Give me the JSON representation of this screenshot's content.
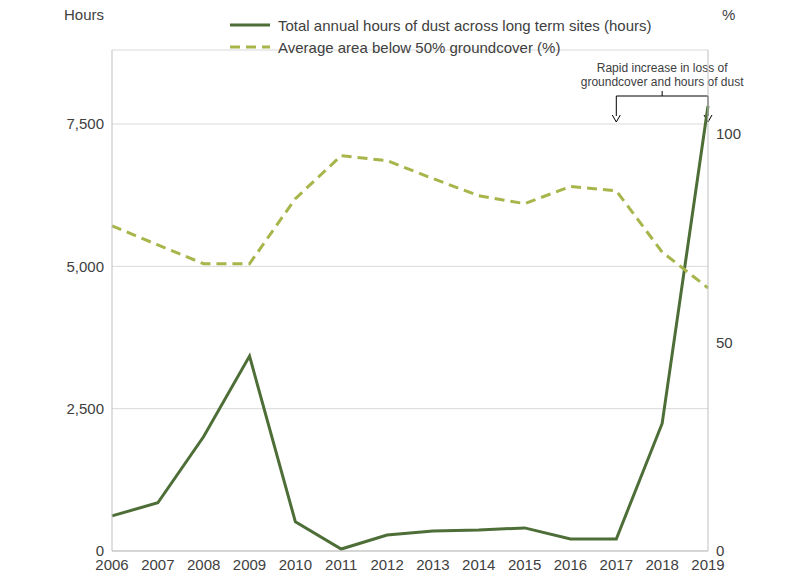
{
  "chart_data": {
    "type": "line",
    "y_label": "Hours",
    "y2_label": "%",
    "categories": [
      "2006",
      "2007",
      "2008",
      "2009",
      "2010",
      "2011",
      "2012",
      "2013",
      "2014",
      "2015",
      "2016",
      "2017",
      "2018",
      "2019"
    ],
    "series": [
      {
        "name": "Total annual hours of dust across long term sites (hours)",
        "color": "#4e6e38",
        "line_style": "solid",
        "values": [
          617,
          847,
          2011,
          3423,
          512,
          35,
          282,
          353,
          370,
          406,
          212,
          212,
          2240,
          7815
        ]
      },
      {
        "name": "Average area below 50% groundcover (%)",
        "color": "#a8b54a",
        "line_style": "dashed",
        "axis": "y2",
        "values": [
          77.9,
          73.3,
          68.8,
          68.8,
          84.4,
          94.7,
          93.5,
          89.2,
          85.1,
          83.2,
          87.3,
          86.3,
          71.6,
          63.0
        ]
      }
    ],
    "ylim": [
      0,
      8800
    ],
    "yticks": [
      0,
      {
        "value": 2500,
        "label": "2,500"
      },
      {
        "value": 5000,
        "label": "5,000"
      },
      {
        "value": 7500,
        "label": "7,500"
      }
    ],
    "y2lim": [
      0,
      120
    ],
    "y2ticks": [
      0,
      50,
      100
    ],
    "grid": true,
    "legend": "top",
    "annotation": {
      "text": [
        "Rapid increase in loss of",
        "groundcover and hours of dust"
      ],
      "x_start": "2017",
      "x_end": "2019"
    }
  }
}
